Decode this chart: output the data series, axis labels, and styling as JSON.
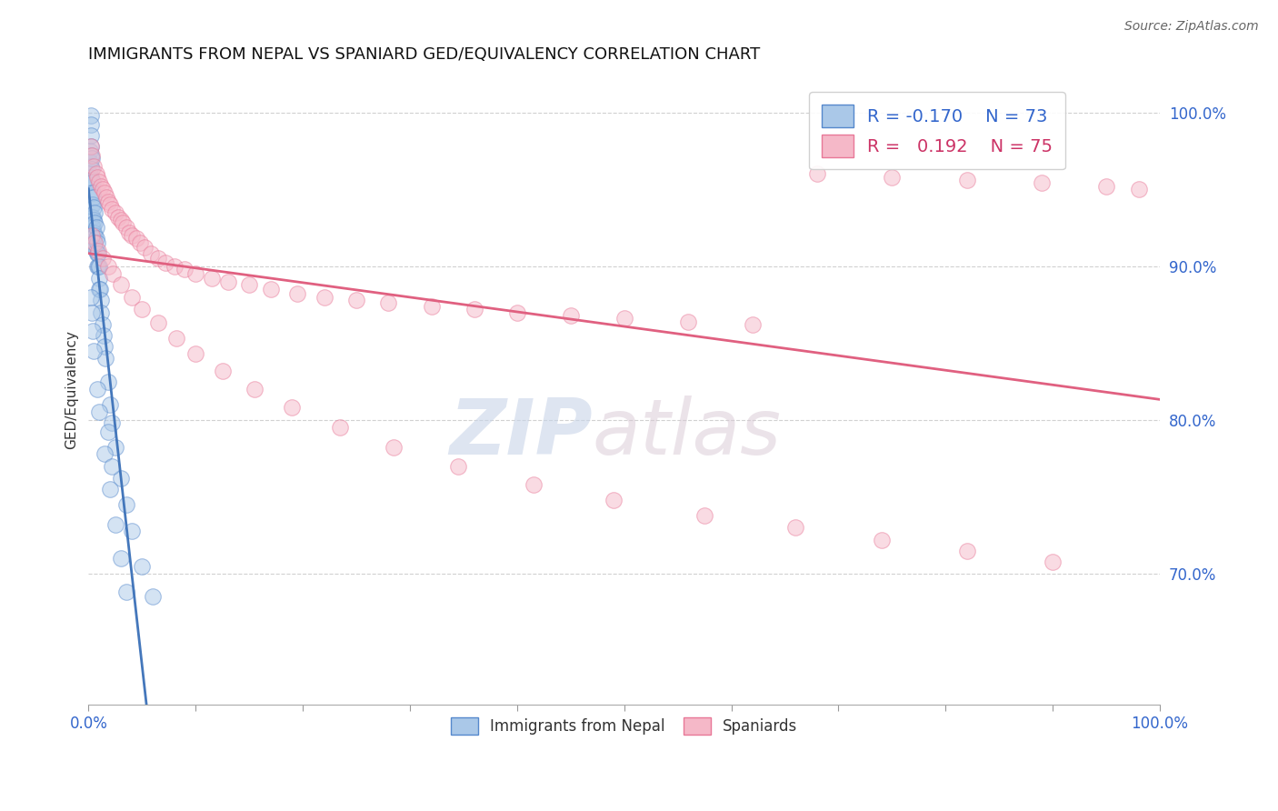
{
  "title": "IMMIGRANTS FROM NEPAL VS SPANIARD GED/EQUIVALENCY CORRELATION CHART",
  "source": "Source: ZipAtlas.com",
  "ylabel": "GED/Equivalency",
  "xlim": [
    0.0,
    1.0
  ],
  "ylim": [
    0.615,
    1.025
  ],
  "watermark_zip": "ZIP",
  "watermark_atlas": "atlas",
  "legend_r_blue": "-0.170",
  "legend_n_blue": "73",
  "legend_r_pink": "0.192",
  "legend_n_pink": "75",
  "blue_fill": "#aac8e8",
  "pink_fill": "#f5b8c8",
  "blue_edge": "#5588cc",
  "pink_edge": "#e87898",
  "blue_line": "#4477bb",
  "pink_line": "#e06080",
  "grid_color": "#cccccc",
  "nepal_x": [
    0.001,
    0.001,
    0.001,
    0.001,
    0.002,
    0.002,
    0.002,
    0.002,
    0.002,
    0.002,
    0.002,
    0.003,
    0.003,
    0.003,
    0.003,
    0.003,
    0.003,
    0.003,
    0.004,
    0.004,
    0.004,
    0.004,
    0.004,
    0.004,
    0.005,
    0.005,
    0.005,
    0.005,
    0.005,
    0.006,
    0.006,
    0.006,
    0.006,
    0.007,
    0.007,
    0.007,
    0.008,
    0.008,
    0.008,
    0.009,
    0.009,
    0.01,
    0.01,
    0.01,
    0.011,
    0.012,
    0.012,
    0.013,
    0.014,
    0.015,
    0.016,
    0.018,
    0.02,
    0.022,
    0.025,
    0.03,
    0.035,
    0.04,
    0.05,
    0.06,
    0.002,
    0.003,
    0.004,
    0.005,
    0.008,
    0.01,
    0.015,
    0.02,
    0.025,
    0.03,
    0.035,
    0.018,
    0.022
  ],
  "nepal_y": [
    0.975,
    0.968,
    0.96,
    0.955,
    0.998,
    0.992,
    0.985,
    0.978,
    0.972,
    0.965,
    0.958,
    0.97,
    0.963,
    0.956,
    0.948,
    0.94,
    0.932,
    0.925,
    0.955,
    0.948,
    0.94,
    0.932,
    0.925,
    0.918,
    0.945,
    0.938,
    0.93,
    0.922,
    0.915,
    0.935,
    0.928,
    0.92,
    0.912,
    0.925,
    0.918,
    0.91,
    0.915,
    0.908,
    0.9,
    0.908,
    0.9,
    0.9,
    0.892,
    0.885,
    0.885,
    0.878,
    0.87,
    0.862,
    0.855,
    0.848,
    0.84,
    0.825,
    0.81,
    0.798,
    0.782,
    0.762,
    0.745,
    0.728,
    0.705,
    0.685,
    0.88,
    0.87,
    0.858,
    0.845,
    0.82,
    0.805,
    0.778,
    0.755,
    0.732,
    0.71,
    0.688,
    0.792,
    0.77
  ],
  "spain_x": [
    0.002,
    0.003,
    0.005,
    0.007,
    0.008,
    0.01,
    0.012,
    0.013,
    0.015,
    0.017,
    0.018,
    0.02,
    0.022,
    0.025,
    0.028,
    0.03,
    0.032,
    0.035,
    0.038,
    0.04,
    0.045,
    0.048,
    0.052,
    0.058,
    0.065,
    0.072,
    0.08,
    0.09,
    0.1,
    0.115,
    0.13,
    0.15,
    0.17,
    0.195,
    0.22,
    0.25,
    0.28,
    0.32,
    0.36,
    0.4,
    0.45,
    0.5,
    0.56,
    0.62,
    0.68,
    0.75,
    0.82,
    0.89,
    0.95,
    0.98,
    0.003,
    0.006,
    0.009,
    0.013,
    0.018,
    0.023,
    0.03,
    0.04,
    0.05,
    0.065,
    0.082,
    0.1,
    0.125,
    0.155,
    0.19,
    0.235,
    0.285,
    0.345,
    0.415,
    0.49,
    0.575,
    0.66,
    0.74,
    0.82,
    0.9
  ],
  "spain_y": [
    0.978,
    0.972,
    0.965,
    0.96,
    0.958,
    0.955,
    0.952,
    0.95,
    0.948,
    0.945,
    0.942,
    0.94,
    0.937,
    0.935,
    0.932,
    0.93,
    0.928,
    0.925,
    0.922,
    0.92,
    0.918,
    0.915,
    0.912,
    0.908,
    0.905,
    0.902,
    0.9,
    0.898,
    0.895,
    0.892,
    0.89,
    0.888,
    0.885,
    0.882,
    0.88,
    0.878,
    0.876,
    0.874,
    0.872,
    0.87,
    0.868,
    0.866,
    0.864,
    0.862,
    0.96,
    0.958,
    0.956,
    0.954,
    0.952,
    0.95,
    0.92,
    0.915,
    0.91,
    0.905,
    0.9,
    0.895,
    0.888,
    0.88,
    0.872,
    0.863,
    0.853,
    0.843,
    0.832,
    0.82,
    0.808,
    0.795,
    0.782,
    0.77,
    0.758,
    0.748,
    0.738,
    0.73,
    0.722,
    0.715,
    0.708
  ]
}
